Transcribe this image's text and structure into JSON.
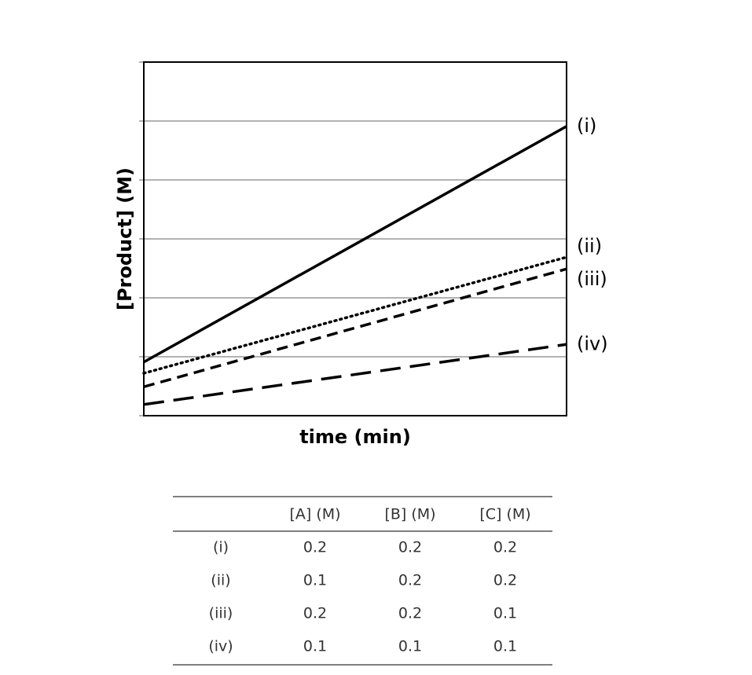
{
  "chart_data": {
    "type": "line",
    "xlabel": "time (min)",
    "ylabel": "[Product] (M)",
    "x": [
      0,
      1
    ],
    "xlim": [
      0,
      1
    ],
    "ylim": [
      0,
      6
    ],
    "yticks": [
      0,
      1,
      2,
      3,
      4,
      5,
      6
    ],
    "grid": true,
    "series": [
      {
        "name": "(i)",
        "color": "#000000",
        "dash": "solid",
        "values": [
          0.91,
          4.91
        ]
      },
      {
        "name": "(ii)",
        "color": "#000000",
        "dash": "dotted",
        "values": [
          0.72,
          2.69
        ]
      },
      {
        "name": "(iii)",
        "color": "#000000",
        "dash": "dashed",
        "values": [
          0.49,
          2.49
        ]
      },
      {
        "name": "(iv)",
        "color": "#000000",
        "dash": "longdash",
        "values": [
          0.19,
          1.21
        ]
      }
    ]
  },
  "table": {
    "columns": [
      "[A] (M)",
      "[B] (M)",
      "[C] (M)"
    ],
    "rows": [
      {
        "label": "(i)",
        "values": [
          0.2,
          0.2,
          0.2
        ]
      },
      {
        "label": "(ii)",
        "values": [
          0.1,
          0.2,
          0.2
        ]
      },
      {
        "label": "(iii)",
        "values": [
          0.2,
          0.2,
          0.1
        ]
      },
      {
        "label": "(iv)",
        "values": [
          0.1,
          0.1,
          0.1
        ]
      }
    ]
  }
}
